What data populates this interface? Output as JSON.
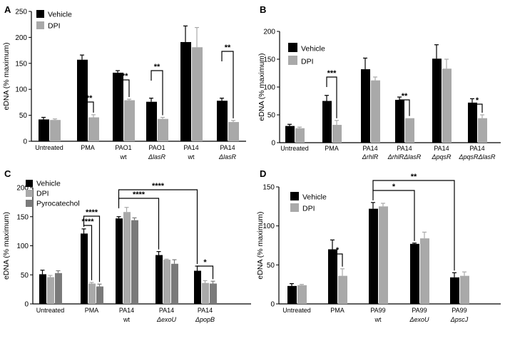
{
  "figure": {
    "colors": {
      "vehicle": "#000000",
      "dpi": "#a9a9a9",
      "pyrocatechol": "#7a7a7a",
      "axis": "#000000"
    }
  },
  "chart_data": [
    {
      "panel": "A",
      "type": "bar",
      "ylabel": "eDNA (% maximum)",
      "ylim": [
        0,
        250
      ],
      "yticks": [
        0,
        50,
        100,
        150,
        200,
        250
      ],
      "legend": [
        "Vehicle",
        "DPI"
      ],
      "legend_position": "top-left",
      "categories": [
        {
          "line1": "Untreated",
          "line2": ""
        },
        {
          "line1": "PMA",
          "line2": ""
        },
        {
          "line1": "PAO1",
          "line2": "wt"
        },
        {
          "line1": "PAO1",
          "line2": "ΔlasR"
        },
        {
          "line1": "PA14",
          "line2": "wt"
        },
        {
          "line1": "PA14",
          "line2": "ΔlasR"
        }
      ],
      "series": [
        {
          "name": "Vehicle",
          "values": [
            42,
            157,
            132,
            76,
            191,
            78
          ],
          "errors": [
            4,
            9,
            4,
            7,
            31,
            5
          ]
        },
        {
          "name": "DPI",
          "values": [
            41,
            46,
            79,
            43,
            181,
            37
          ],
          "errors": [
            2,
            5,
            2,
            3,
            38,
            3
          ]
        }
      ],
      "significance": [
        {
          "label": "***",
          "from": [
            1,
            0
          ],
          "to": [
            1,
            1
          ]
        },
        {
          "label": "***",
          "from": [
            2,
            0
          ],
          "to": [
            2,
            1
          ]
        },
        {
          "label": "**",
          "from": [
            3,
            0
          ],
          "to": [
            3,
            1
          ]
        },
        {
          "label": "**",
          "from": [
            5,
            0
          ],
          "to": [
            5,
            1
          ]
        }
      ]
    },
    {
      "panel": "B",
      "type": "bar",
      "ylabel": "eDNA (% maximum)",
      "ylim": [
        0,
        200
      ],
      "yticks": [
        0,
        50,
        100,
        150,
        200
      ],
      "legend": [
        "Vehicle",
        "DPI"
      ],
      "legend_position": "top-left",
      "categories": [
        {
          "line1": "Untreated",
          "line2": ""
        },
        {
          "line1": "PMA",
          "line2": ""
        },
        {
          "line1": "PA14",
          "line2": "ΔrhlR"
        },
        {
          "line1": "PA14",
          "line2": "ΔrhlRΔlasR"
        },
        {
          "line1": "PA14",
          "line2": "ΔpqsR"
        },
        {
          "line1": "PA14",
          "line2": "ΔpqsRΔlasR"
        }
      ],
      "series": [
        {
          "name": "Vehicle",
          "values": [
            30,
            75,
            132,
            77,
            151,
            72
          ],
          "errors": [
            3,
            10,
            20,
            5,
            25,
            7
          ]
        },
        {
          "name": "DPI",
          "values": [
            26,
            32,
            112,
            44,
            133,
            44
          ],
          "errors": [
            2,
            8,
            6,
            0,
            17,
            6
          ]
        }
      ],
      "significance": [
        {
          "label": "***",
          "from": [
            1,
            0
          ],
          "to": [
            1,
            1
          ]
        },
        {
          "label": "**",
          "from": [
            3,
            0
          ],
          "to": [
            3,
            1
          ]
        },
        {
          "label": "*",
          "from": [
            5,
            0
          ],
          "to": [
            5,
            1
          ]
        }
      ]
    },
    {
      "panel": "C",
      "type": "bar",
      "ylabel": "eDNA (% maximum)",
      "ylim": [
        0,
        200
      ],
      "yticks": [
        0,
        50,
        100,
        150,
        200
      ],
      "legend": [
        "Vehicle",
        "DPI",
        "Pyrocatechol"
      ],
      "legend_position": "top-left",
      "categories": [
        {
          "line1": "Untreated",
          "line2": ""
        },
        {
          "line1": "PMA",
          "line2": ""
        },
        {
          "line1": "PA14",
          "line2": "wt"
        },
        {
          "line1": "PA14",
          "line2": "ΔexoU"
        },
        {
          "line1": "PA14",
          "line2": "ΔpopB"
        }
      ],
      "series": [
        {
          "name": "Vehicle",
          "values": [
            51,
            121,
            147,
            84,
            57
          ],
          "errors": [
            7,
            8,
            3,
            6,
            8
          ]
        },
        {
          "name": "DPI",
          "values": [
            46,
            35,
            158,
            76,
            36
          ],
          "errors": [
            3,
            2,
            8,
            1,
            4
          ]
        },
        {
          "name": "Pyrocatechol",
          "values": [
            53,
            30,
            144,
            69,
            35
          ],
          "errors": [
            4,
            4,
            4,
            7,
            4
          ]
        }
      ],
      "significance": [
        {
          "label": "****",
          "from": [
            1,
            0
          ],
          "to": [
            1,
            1
          ]
        },
        {
          "label": "****",
          "from": [
            1,
            0
          ],
          "to": [
            1,
            2
          ]
        },
        {
          "label": "****",
          "from": [
            2,
            0
          ],
          "to": [
            3,
            0
          ]
        },
        {
          "label": "****",
          "from": [
            2,
            0
          ],
          "to": [
            4,
            0
          ]
        },
        {
          "label": "*",
          "from": [
            4,
            0
          ],
          "to": [
            4,
            2
          ]
        }
      ]
    },
    {
      "panel": "D",
      "type": "bar",
      "ylabel": "eDNA (% maximum)",
      "ylim": [
        0,
        150
      ],
      "yticks": [
        0,
        50,
        100,
        150
      ],
      "legend": [
        "Vehicle",
        "DPI"
      ],
      "legend_position": "top-left",
      "categories": [
        {
          "line1": "Untreated",
          "line2": ""
        },
        {
          "line1": "PMA",
          "line2": ""
        },
        {
          "line1": "PA99",
          "line2": "wt"
        },
        {
          "line1": "PA99",
          "line2": "ΔexoU"
        },
        {
          "line1": "PA99",
          "line2": "ΔpscJ"
        }
      ],
      "series": [
        {
          "name": "Vehicle",
          "values": [
            23,
            70,
            122,
            77,
            34
          ],
          "errors": [
            3,
            12,
            8,
            1,
            6
          ]
        },
        {
          "name": "DPI",
          "values": [
            24,
            36,
            125,
            84,
            36
          ],
          "errors": [
            1,
            9,
            4,
            8,
            5
          ]
        }
      ],
      "significance": [
        {
          "label": "*",
          "from": [
            1,
            0
          ],
          "to": [
            1,
            1
          ]
        },
        {
          "label": "*",
          "from": [
            2,
            0
          ],
          "to": [
            3,
            0
          ]
        },
        {
          "label": "**",
          "from": [
            2,
            0
          ],
          "to": [
            4,
            0
          ]
        }
      ]
    }
  ]
}
